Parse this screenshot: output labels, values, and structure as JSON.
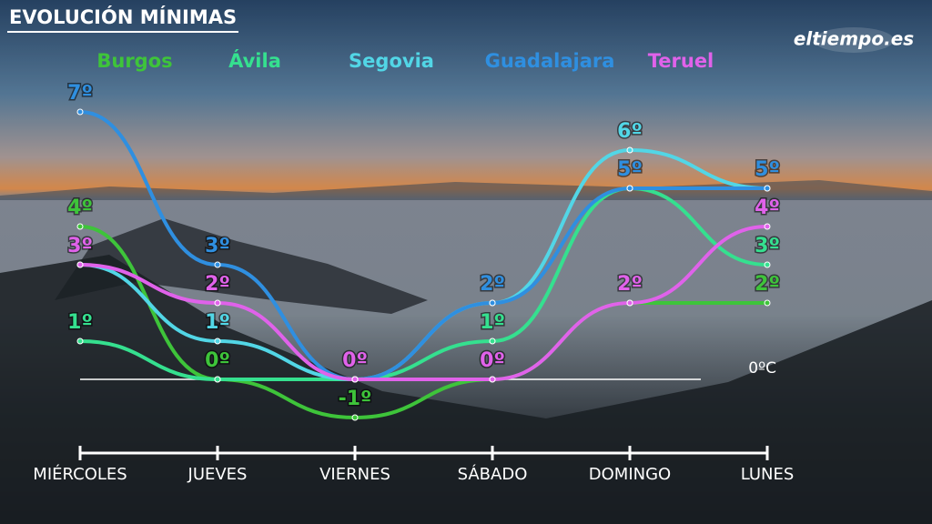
{
  "chart_data": {
    "type": "line",
    "title": "EVOLUCIÓN MÍNIMAS",
    "logo": "eltiempo.es",
    "zero_line_label": "0ºC",
    "categories": [
      "MIÉRCOLES",
      "JUEVES",
      "VIERNES",
      "SÁBADO",
      "DOMINGO",
      "LUNES"
    ],
    "series": [
      {
        "name": "Burgos",
        "color": "#3ec43a",
        "values": [
          4,
          0,
          -1,
          0,
          2,
          2
        ],
        "value_labels": [
          "4º",
          "0º",
          "-1º",
          null,
          null,
          "2º"
        ]
      },
      {
        "name": "Ávila",
        "color": "#35e08f",
        "values": [
          1,
          0,
          0,
          1,
          5,
          3
        ],
        "value_labels": [
          "1º",
          null,
          null,
          "1º",
          null,
          "3º"
        ]
      },
      {
        "name": "Segovia",
        "color": "#52d6e6",
        "values": [
          3,
          1,
          0,
          2,
          6,
          5
        ],
        "value_labels": [
          null,
          "1º",
          null,
          null,
          "6º",
          null
        ]
      },
      {
        "name": "Guadalajara",
        "color": "#2f8fe0",
        "values": [
          7,
          3,
          0,
          2,
          5,
          5
        ],
        "value_labels": [
          "7º",
          "3º",
          null,
          "2º",
          "5º",
          "5º"
        ]
      },
      {
        "name": "Teruel",
        "color": "#e062ea",
        "values": [
          3,
          2,
          0,
          0,
          2,
          4
        ],
        "value_labels": [
          "3º",
          "2º",
          "0º",
          "0º",
          "2º",
          "4º"
        ]
      }
    ]
  }
}
